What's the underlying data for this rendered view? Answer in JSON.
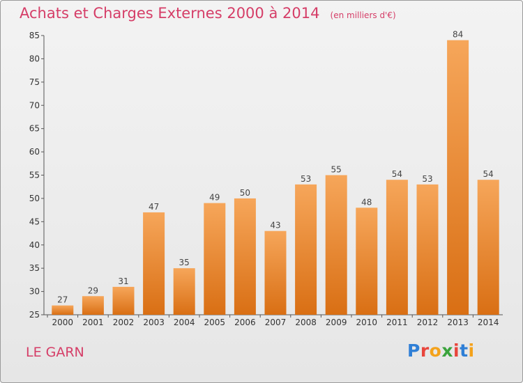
{
  "title": "Achats et Charges Externes 2000 à 2014",
  "subtitle": "(en milliers d'€)",
  "location": "LE GARN",
  "logo": {
    "letters": [
      "P",
      "r",
      "o",
      "x",
      "i",
      "t",
      "i"
    ],
    "colors": [
      "#2f7fd6",
      "#e8453c",
      "#f4a21b",
      "#3aa33c",
      "#e8453c",
      "#2f7fd6",
      "#f4a21b"
    ]
  },
  "chart_data": {
    "type": "bar",
    "categories": [
      "2000",
      "2001",
      "2002",
      "2003",
      "2004",
      "2005",
      "2006",
      "2007",
      "2008",
      "2009",
      "2010",
      "2011",
      "2012",
      "2013",
      "2014"
    ],
    "values": [
      27,
      29,
      31,
      47,
      35,
      49,
      50,
      43,
      53,
      55,
      48,
      54,
      53,
      84,
      54
    ],
    "ylim": [
      25,
      85
    ],
    "yticks": [
      25,
      30,
      35,
      40,
      45,
      50,
      55,
      60,
      65,
      70,
      75,
      80,
      85
    ],
    "bar_color_top": "#f6a65a",
    "bar_color_bottom": "#d96f14",
    "grid": false
  }
}
